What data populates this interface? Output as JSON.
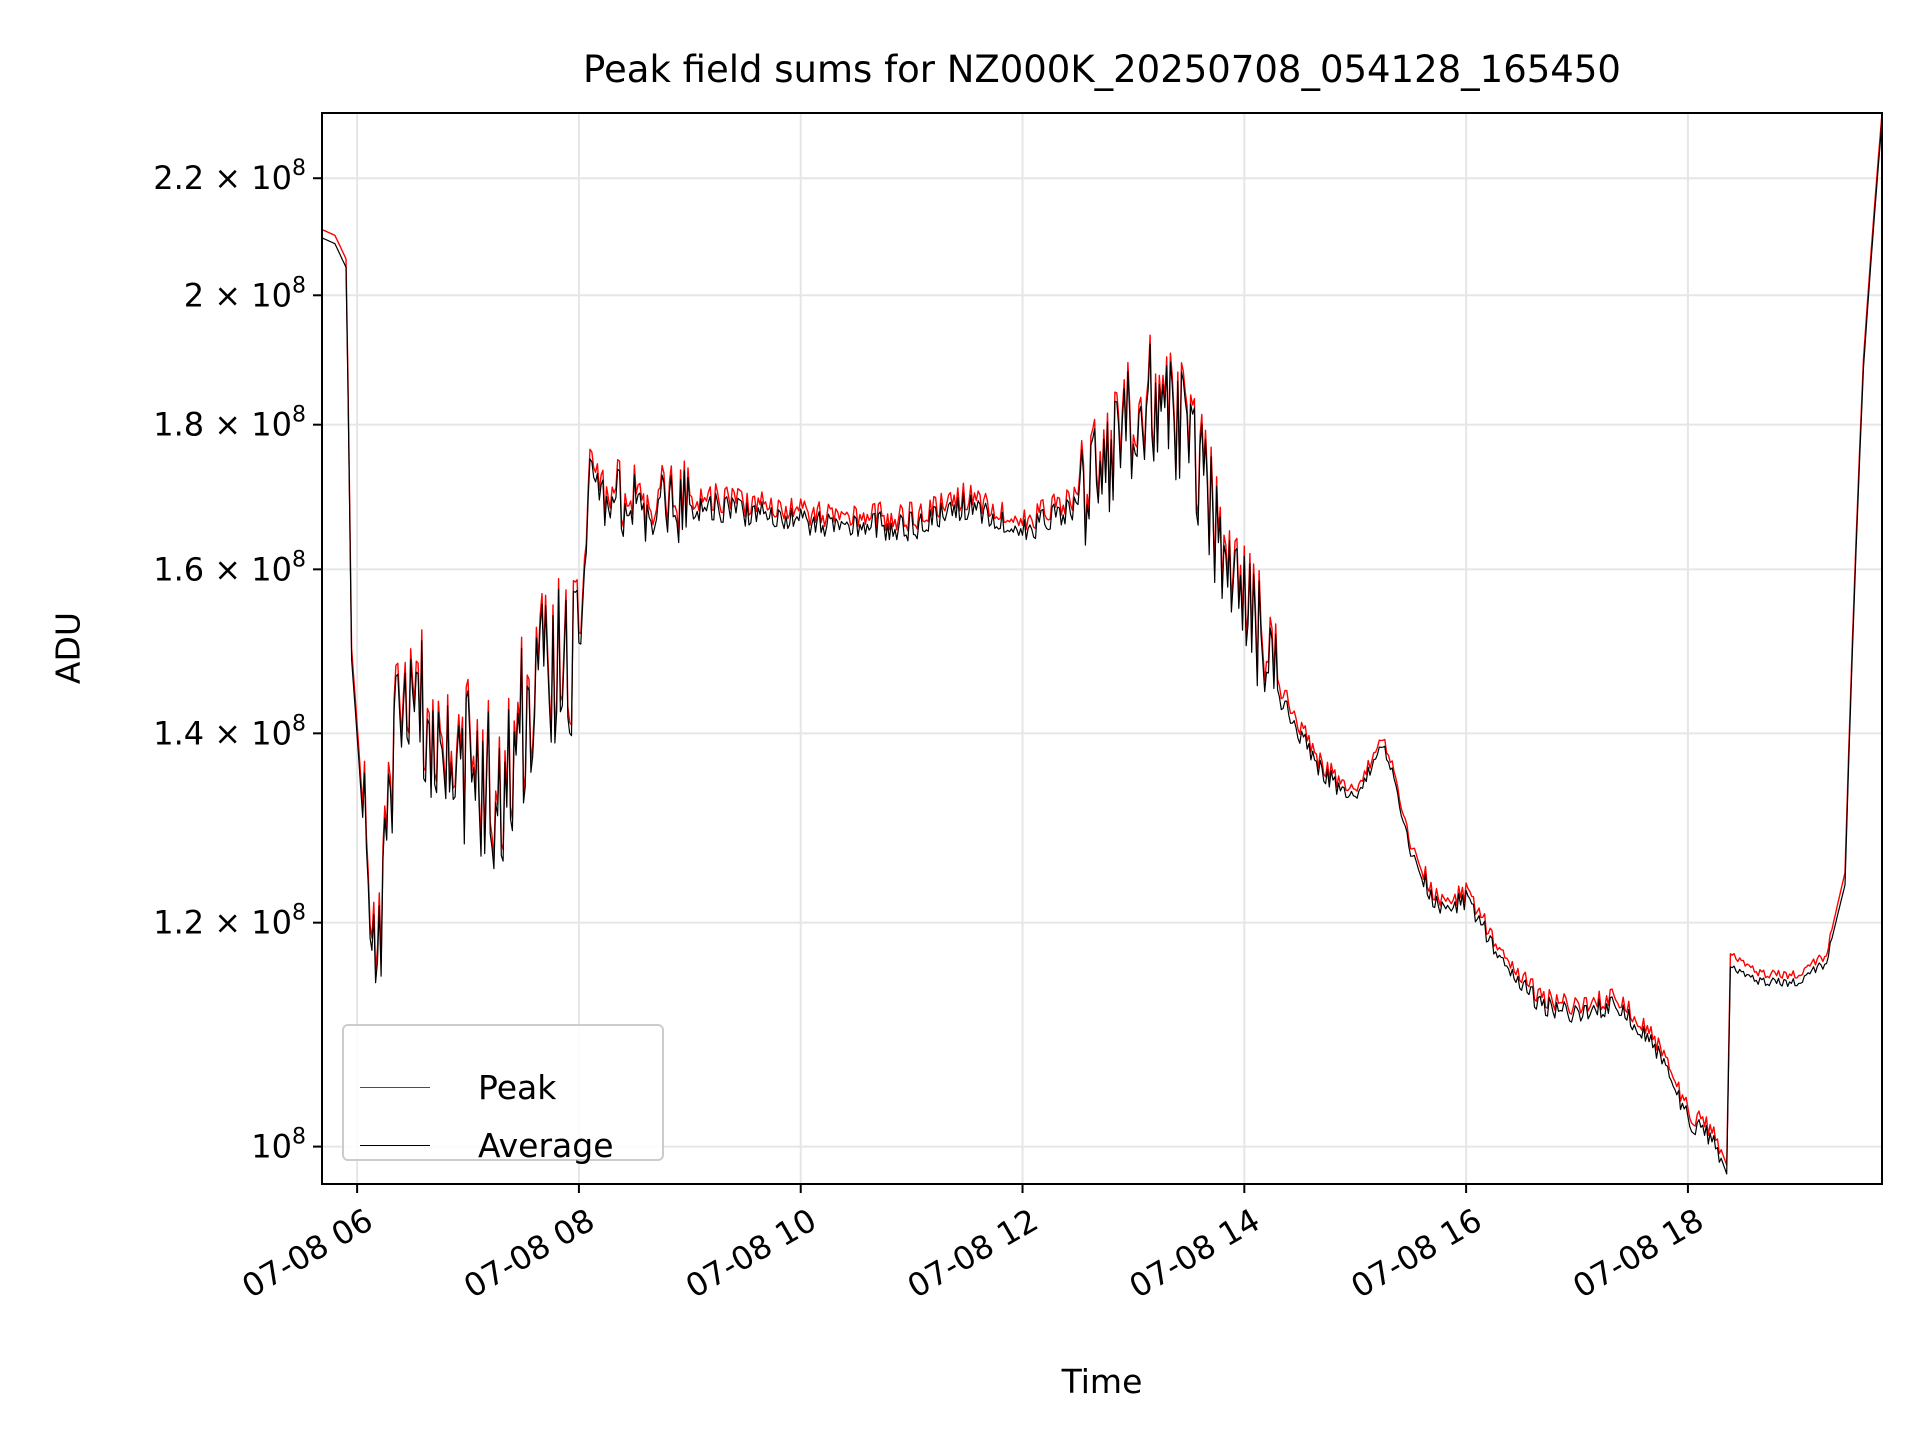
{
  "chart_data": {
    "type": "line",
    "title": "Peak field sums for NZ000K_20250708_054128_165450",
    "xlabel": "Time",
    "ylabel": "ADU",
    "x_unit": "hours since 07-08 00:00 (local clock)",
    "xlim": [
      "07-08 05:41",
      "07-08 19:45"
    ],
    "ylim": [
      97000000,
      232000000
    ],
    "yscale": "log",
    "grid": true,
    "legend_position": "lower-left",
    "x_ticks": [
      "07-08 06",
      "07-08 08",
      "07-08 10",
      "07-08 12",
      "07-08 14",
      "07-08 16",
      "07-08 18"
    ],
    "y_ticks": [
      {
        "value": 100000000,
        "mantissa": "",
        "exp": "8"
      },
      {
        "value": 120000000,
        "mantissa": "1.2",
        "exp": "8"
      },
      {
        "value": 140000000,
        "mantissa": "1.4",
        "exp": "8"
      },
      {
        "value": 160000000,
        "mantissa": "1.6",
        "exp": "8"
      },
      {
        "value": 180000000,
        "mantissa": "1.8",
        "exp": "8"
      },
      {
        "value": 200000000,
        "mantissa": "2",
        "exp": "8"
      },
      {
        "value": 220000000,
        "mantissa": "2.2",
        "exp": "8"
      }
    ],
    "series": [
      {
        "name": "Peak",
        "color": "#ff0000",
        "points": [
          [
            "07-08 05:41",
            211000000
          ],
          [
            "07-08 05:48",
            210000000
          ],
          [
            "07-08 05:54",
            206000000
          ],
          [
            "07-08 05:57",
            150000000
          ],
          [
            "07-08 06:03",
            132000000
          ],
          [
            "07-08 06:12",
            119000000
          ],
          [
            "07-08 06:20",
            140000000
          ],
          [
            "07-08 06:30",
            148000000
          ],
          [
            "07-08 06:45",
            140000000
          ],
          [
            "07-08 07:00",
            138000000
          ],
          [
            "07-08 07:15",
            135000000
          ],
          [
            "07-08 07:30",
            142000000
          ],
          [
            "07-08 07:45",
            150000000
          ],
          [
            "07-08 08:00",
            152000000
          ],
          [
            "07-08 08:06",
            172000000
          ],
          [
            "07-08 08:20",
            170000000
          ],
          [
            "07-08 08:40",
            169000000
          ],
          [
            "07-08 09:00",
            170000000
          ],
          [
            "07-08 09:30",
            169000000
          ],
          [
            "07-08 10:00",
            168000000
          ],
          [
            "07-08 10:30",
            167000000
          ],
          [
            "07-08 11:00",
            167000000
          ],
          [
            "07-08 11:30",
            170000000
          ],
          [
            "07-08 11:45",
            168000000
          ],
          [
            "07-08 12:00",
            166000000
          ],
          [
            "07-08 12:30",
            170000000
          ],
          [
            "07-08 12:50",
            178000000
          ],
          [
            "07-08 13:10",
            185000000
          ],
          [
            "07-08 13:30",
            180000000
          ],
          [
            "07-08 13:50",
            162000000
          ],
          [
            "07-08 14:05",
            155000000
          ],
          [
            "07-08 14:20",
            145000000
          ],
          [
            "07-08 14:40",
            137000000
          ],
          [
            "07-08 15:00",
            133000000
          ],
          [
            "07-08 15:15",
            140000000
          ],
          [
            "07-08 15:30",
            128000000
          ],
          [
            "07-08 15:45",
            122000000
          ],
          [
            "07-08 16:00",
            123000000
          ],
          [
            "07-08 16:20",
            117000000
          ],
          [
            "07-08 16:40",
            113000000
          ],
          [
            "07-08 17:00",
            112000000
          ],
          [
            "07-08 17:20",
            113000000
          ],
          [
            "07-08 17:40",
            110000000
          ],
          [
            "07-08 18:00",
            103000000
          ],
          [
            "07-08 18:15",
            101000000
          ],
          [
            "07-08 18:21",
            98500000
          ],
          [
            "07-08 18:23",
            117000000
          ],
          [
            "07-08 18:40",
            115000000
          ],
          [
            "07-08 19:00",
            115000000
          ],
          [
            "07-08 19:15",
            117000000
          ],
          [
            "07-08 19:25",
            125000000
          ],
          [
            "07-08 19:35",
            190000000
          ],
          [
            "07-08 19:45",
            232000000
          ]
        ]
      },
      {
        "name": "Average",
        "color": "#000000",
        "points": [
          [
            "07-08 05:41",
            210000000
          ],
          [
            "07-08 05:48",
            209000000
          ],
          [
            "07-08 05:54",
            205000000
          ],
          [
            "07-08 05:57",
            149000000
          ],
          [
            "07-08 06:03",
            131000000
          ],
          [
            "07-08 06:12",
            118000000
          ],
          [
            "07-08 06:20",
            139000000
          ],
          [
            "07-08 06:30",
            147000000
          ],
          [
            "07-08 06:45",
            139000000
          ],
          [
            "07-08 07:00",
            137000000
          ],
          [
            "07-08 07:15",
            134000000
          ],
          [
            "07-08 07:30",
            141000000
          ],
          [
            "07-08 07:45",
            149000000
          ],
          [
            "07-08 08:00",
            151000000
          ],
          [
            "07-08 08:06",
            171000000
          ],
          [
            "07-08 08:20",
            169000000
          ],
          [
            "07-08 08:40",
            168000000
          ],
          [
            "07-08 09:00",
            169000000
          ],
          [
            "07-08 09:30",
            168000000
          ],
          [
            "07-08 10:00",
            167000000
          ],
          [
            "07-08 10:30",
            166000000
          ],
          [
            "07-08 11:00",
            166000000
          ],
          [
            "07-08 11:30",
            169000000
          ],
          [
            "07-08 11:45",
            167000000
          ],
          [
            "07-08 12:00",
            165000000
          ],
          [
            "07-08 12:30",
            169000000
          ],
          [
            "07-08 12:50",
            177000000
          ],
          [
            "07-08 13:10",
            184000000
          ],
          [
            "07-08 13:30",
            179000000
          ],
          [
            "07-08 13:50",
            161000000
          ],
          [
            "07-08 14:05",
            154000000
          ],
          [
            "07-08 14:20",
            144000000
          ],
          [
            "07-08 14:40",
            136500000
          ],
          [
            "07-08 15:00",
            132500000
          ],
          [
            "07-08 15:15",
            139500000
          ],
          [
            "07-08 15:30",
            127500000
          ],
          [
            "07-08 15:45",
            121500000
          ],
          [
            "07-08 16:00",
            122500000
          ],
          [
            "07-08 16:20",
            116500000
          ],
          [
            "07-08 16:40",
            112500000
          ],
          [
            "07-08 17:00",
            111500000
          ],
          [
            "07-08 17:20",
            112500000
          ],
          [
            "07-08 17:40",
            109500000
          ],
          [
            "07-08 18:00",
            102500000
          ],
          [
            "07-08 18:15",
            100500000
          ],
          [
            "07-08 18:21",
            98000000
          ],
          [
            "07-08 18:23",
            116000000
          ],
          [
            "07-08 18:40",
            114500000
          ],
          [
            "07-08 19:00",
            114500000
          ],
          [
            "07-08 19:15",
            116500000
          ],
          [
            "07-08 19:25",
            124000000
          ],
          [
            "07-08 19:35",
            189000000
          ],
          [
            "07-08 19:45",
            231000000
          ]
        ]
      }
    ]
  }
}
